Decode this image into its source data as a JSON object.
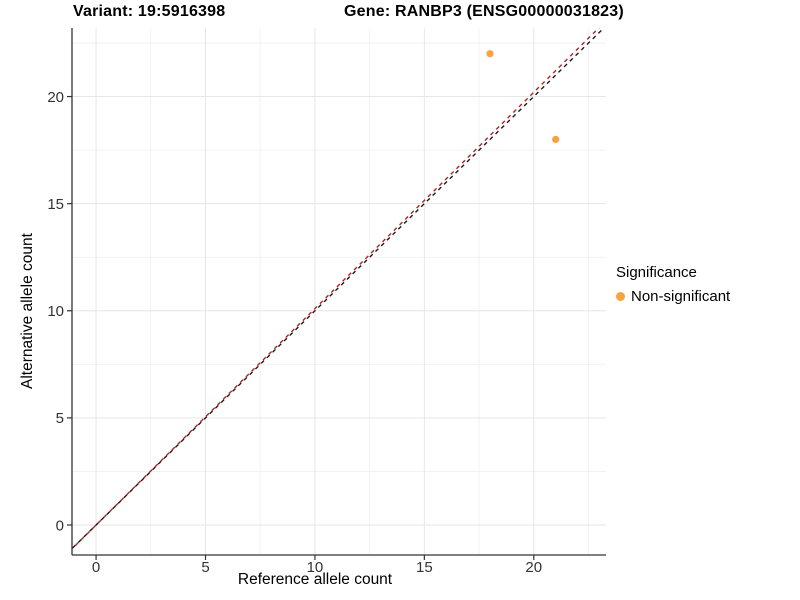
{
  "chart_data": {
    "type": "scatter",
    "titles": {
      "left": "Variant: 19:5916398",
      "right": "Gene: RANBP3 (ENSG00000031823)"
    },
    "xlabel": "Reference allele count",
    "ylabel": "Alternative allele count",
    "xlim": [
      -1.1,
      23.3
    ],
    "ylim": [
      -1.4,
      23.2
    ],
    "x_ticks": [
      0,
      5,
      10,
      15,
      20
    ],
    "y_ticks": [
      0,
      5,
      10,
      15,
      20
    ],
    "minor_tick_step": 2.5,
    "grid": true,
    "points": [
      {
        "x": 18,
        "y": 22,
        "series": "Non-significant"
      },
      {
        "x": 21,
        "y": 18,
        "series": "Non-significant"
      }
    ],
    "ablines": [
      {
        "name": "identity-line",
        "slope": 1.0,
        "intercept": 0,
        "color": "#1a1a1a",
        "style": "dashed"
      },
      {
        "name": "fit-line",
        "slope": 1.01,
        "intercept": 0,
        "color": "#b22222",
        "style": "dashed"
      }
    ],
    "legend": {
      "title": "Significance",
      "position": "right",
      "items": [
        {
          "label": "Non-significant",
          "color": "#f9a242"
        }
      ]
    },
    "colors": {
      "point": "#f9a242",
      "grid_major": "#e6e6e6",
      "grid_minor": "#f2f2f2",
      "axis": "#333333",
      "tick_label": "#333333",
      "background": "#ffffff"
    }
  }
}
